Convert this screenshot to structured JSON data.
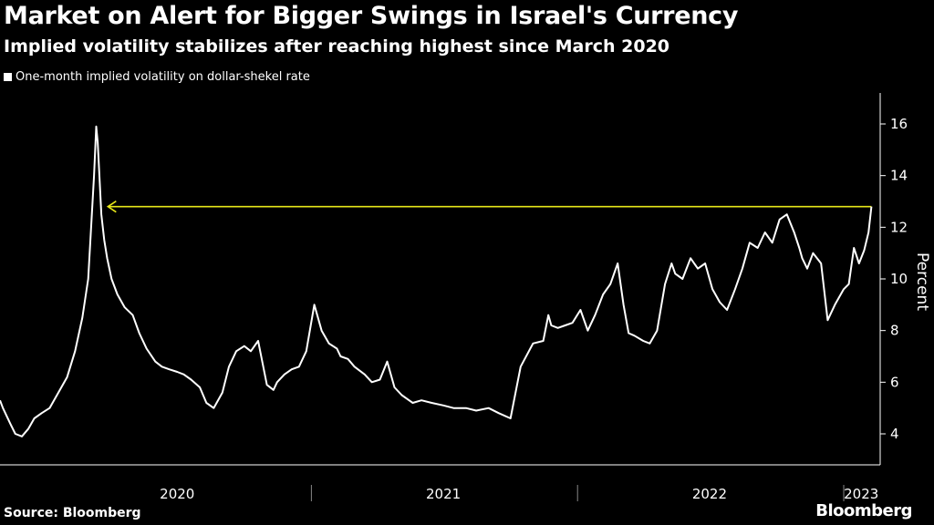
{
  "header": {
    "title": "Market on Alert for Bigger Swings in Israel's Currency",
    "subtitle": "Implied volatility stabilizes after reaching highest since March 2020"
  },
  "legend": {
    "label": "One-month implied volatility on dollar-shekel rate"
  },
  "footer": {
    "source": "Source: Bloomberg",
    "brand": "Bloomberg"
  },
  "colors": {
    "background": "#000000",
    "line": "#ffffff",
    "annotation": "#e6e619",
    "axis": "#ffffff"
  },
  "chart_data": {
    "type": "line",
    "title": "Market on Alert for Bigger Swings in Israel's Currency",
    "subtitle": "Implied volatility stabilizes after reaching highest since March 2020",
    "ylabel": "Percent",
    "xlabel": "",
    "ylim": [
      2.8,
      17.2
    ],
    "yticks": [
      4,
      6,
      8,
      10,
      12,
      14,
      16
    ],
    "xlim": [
      "2019-11-01",
      "2023-02-20"
    ],
    "x_categories": [
      {
        "label": "2020",
        "center": "2020-07-01"
      },
      {
        "label": "2021",
        "center": "2021-07-01"
      },
      {
        "label": "2022",
        "center": "2022-07-01"
      },
      {
        "label": "2023",
        "center": "2023-01-25"
      }
    ],
    "year_separators": [
      "2021-01-01",
      "2022-01-01",
      "2023-01-01"
    ],
    "grid": false,
    "legend_position": "top-left",
    "annotation": {
      "type": "arrow",
      "from": "2023-02-08",
      "to": "2020-03-28",
      "y": 12.8
    },
    "series": [
      {
        "name": "One-month implied volatility on dollar-shekel rate",
        "x": [
          "2019-11-01",
          "2019-11-05",
          "2019-11-10",
          "2019-11-15",
          "2019-11-22",
          "2019-12-01",
          "2019-12-10",
          "2019-12-18",
          "2019-12-28",
          "2020-01-08",
          "2020-01-20",
          "2020-02-01",
          "2020-02-12",
          "2020-02-22",
          "2020-03-01",
          "2020-03-05",
          "2020-03-09",
          "2020-03-12",
          "2020-03-14",
          "2020-03-16",
          "2020-03-19",
          "2020-03-23",
          "2020-03-27",
          "2020-04-02",
          "2020-04-10",
          "2020-04-20",
          "2020-05-01",
          "2020-05-10",
          "2020-05-20",
          "2020-06-01",
          "2020-06-10",
          "2020-06-20",
          "2020-07-01",
          "2020-07-10",
          "2020-07-20",
          "2020-08-01",
          "2020-08-10",
          "2020-08-20",
          "2020-09-01",
          "2020-09-10",
          "2020-09-20",
          "2020-10-01",
          "2020-10-10",
          "2020-10-20",
          "2020-11-01",
          "2020-11-10",
          "2020-11-15",
          "2020-11-25",
          "2020-12-05",
          "2020-12-15",
          "2020-12-25",
          "2021-01-05",
          "2021-01-15",
          "2021-01-25",
          "2021-02-05",
          "2021-02-10",
          "2021-02-20",
          "2021-03-01",
          "2021-03-15",
          "2021-03-25",
          "2021-04-05",
          "2021-04-15",
          "2021-04-25",
          "2021-05-05",
          "2021-05-15",
          "2021-05-20",
          "2021-06-01",
          "2021-06-15",
          "2021-07-01",
          "2021-07-15",
          "2021-08-01",
          "2021-08-15",
          "2021-09-01",
          "2021-09-15",
          "2021-10-01",
          "2021-10-15",
          "2021-11-01",
          "2021-11-15",
          "2021-11-22",
          "2021-11-26",
          "2021-12-05",
          "2021-12-15",
          "2021-12-25",
          "2022-01-05",
          "2022-01-15",
          "2022-01-25",
          "2022-02-05",
          "2022-02-15",
          "2022-02-25",
          "2022-03-05",
          "2022-03-12",
          "2022-03-20",
          "2022-04-01",
          "2022-04-10",
          "2022-04-20",
          "2022-05-01",
          "2022-05-10",
          "2022-05-15",
          "2022-05-25",
          "2022-06-05",
          "2022-06-15",
          "2022-06-25",
          "2022-07-05",
          "2022-07-15",
          "2022-07-25",
          "2022-08-05",
          "2022-08-15",
          "2022-08-25",
          "2022-09-05",
          "2022-09-15",
          "2022-09-25",
          "2022-10-05",
          "2022-10-15",
          "2022-10-25",
          "2022-11-01",
          "2022-11-05",
          "2022-11-12",
          "2022-11-20",
          "2022-12-01",
          "2022-12-10",
          "2022-12-20",
          "2023-01-01",
          "2023-01-08",
          "2023-01-15",
          "2023-01-22",
          "2023-01-29",
          "2023-02-04",
          "2023-02-08"
        ],
        "values": [
          5.3,
          5.0,
          4.7,
          4.4,
          4.0,
          3.9,
          4.2,
          4.6,
          4.8,
          5.0,
          5.6,
          6.2,
          7.2,
          8.5,
          10.0,
          12.0,
          14.0,
          15.9,
          15.3,
          14.2,
          12.5,
          11.5,
          10.8,
          10.0,
          9.4,
          8.9,
          8.6,
          7.9,
          7.3,
          6.8,
          6.6,
          6.5,
          6.4,
          6.3,
          6.1,
          5.8,
          5.2,
          5.0,
          5.6,
          6.6,
          7.2,
          7.4,
          7.2,
          7.6,
          5.9,
          5.7,
          6.0,
          6.3,
          6.5,
          6.6,
          7.2,
          9.0,
          8.0,
          7.5,
          7.3,
          7.0,
          6.9,
          6.6,
          6.3,
          6.0,
          6.1,
          6.8,
          5.8,
          5.5,
          5.3,
          5.2,
          5.3,
          5.2,
          5.1,
          5.0,
          5.0,
          4.9,
          5.0,
          4.8,
          4.6,
          6.6,
          7.5,
          7.6,
          8.6,
          8.2,
          8.1,
          8.2,
          8.3,
          8.8,
          8.0,
          8.6,
          9.4,
          9.8,
          10.6,
          9.0,
          7.9,
          7.8,
          7.6,
          7.5,
          8.0,
          9.8,
          10.6,
          10.2,
          10.0,
          10.8,
          10.4,
          10.6,
          9.6,
          9.1,
          8.8,
          9.6,
          10.4,
          11.4,
          11.2,
          11.8,
          11.4,
          12.3,
          12.5,
          11.8,
          11.2,
          10.8,
          10.4,
          11.0,
          10.6,
          8.4,
          9.0,
          9.6,
          9.8,
          11.2,
          10.6,
          11.1,
          11.8,
          12.8
        ]
      }
    ]
  }
}
